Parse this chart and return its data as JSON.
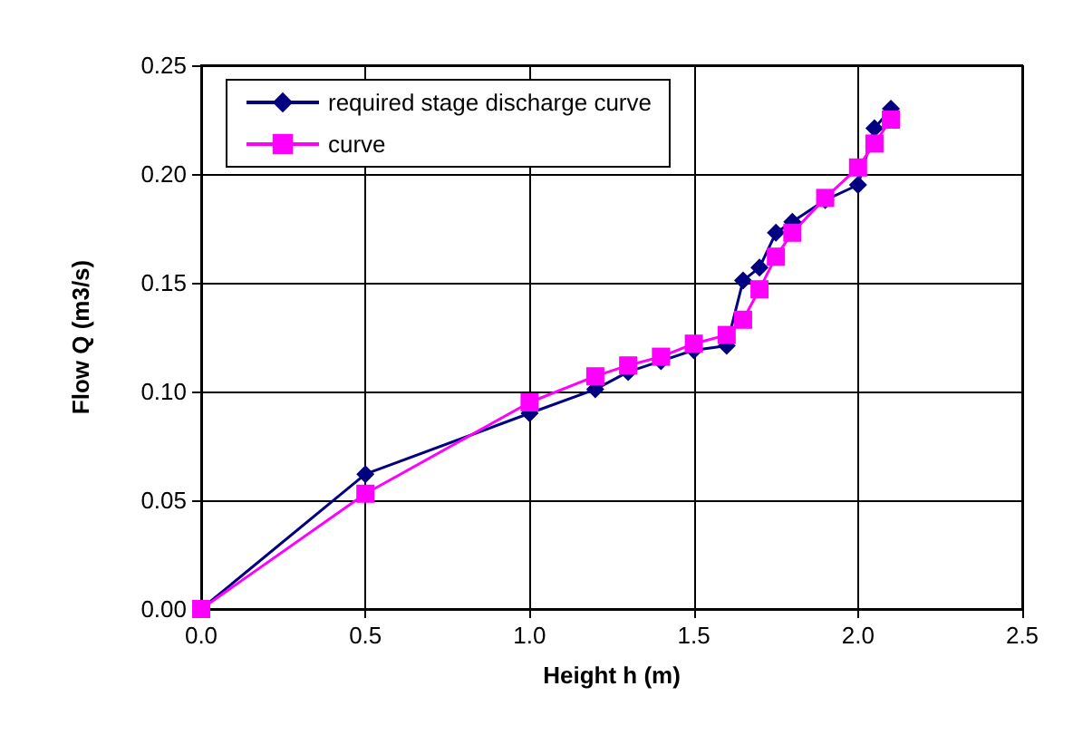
{
  "chart_data": {
    "type": "line",
    "xlabel": "Height h (m)",
    "ylabel": "Flow Q (m3/s)",
    "xlim": [
      0,
      2.5
    ],
    "xticks": [
      {
        "value": 0,
        "label": "0.0"
      },
      {
        "value": 0.5,
        "label": "0.5"
      },
      {
        "value": 1,
        "label": "1.0"
      },
      {
        "value": 1.5,
        "label": "1.5"
      },
      {
        "value": 2,
        "label": "2.0"
      },
      {
        "value": 2.5,
        "label": "2.5"
      }
    ],
    "ylim": [
      0,
      0.25
    ],
    "yticks": [
      {
        "value": 0,
        "label": "0.00"
      },
      {
        "value": 0.05,
        "label": "0.05"
      },
      {
        "value": 0.1,
        "label": "0.10"
      },
      {
        "value": 0.15,
        "label": "0.15"
      },
      {
        "value": 0.2,
        "label": "0.20"
      },
      {
        "value": 0.25,
        "label": "0.25"
      }
    ],
    "grid": true,
    "legend": "top left",
    "series": [
      {
        "name": "required stage discharge curve",
        "color": "#000080",
        "marker": "diamond",
        "x": [
          0,
          0.5,
          1.0,
          1.2,
          1.3,
          1.4,
          1.5,
          1.6,
          1.65,
          1.7,
          1.75,
          1.8,
          1.9,
          2.0,
          2.05,
          2.1
        ],
        "values": [
          0,
          0.062,
          0.09,
          0.101,
          0.109,
          0.114,
          0.119,
          0.121,
          0.151,
          0.157,
          0.173,
          0.178,
          0.188,
          0.195,
          0.221,
          0.23
        ]
      },
      {
        "name": "curve",
        "color": "#ff00ff",
        "marker": "square",
        "x": [
          0,
          0.5,
          1.0,
          1.2,
          1.3,
          1.4,
          1.5,
          1.6,
          1.65,
          1.7,
          1.75,
          1.8,
          1.9,
          2.0,
          2.05,
          2.1
        ],
        "values": [
          0,
          0.053,
          0.095,
          0.107,
          0.112,
          0.116,
          0.122,
          0.126,
          0.133,
          0.147,
          0.162,
          0.173,
          0.189,
          0.203,
          0.214,
          0.225
        ]
      }
    ]
  }
}
